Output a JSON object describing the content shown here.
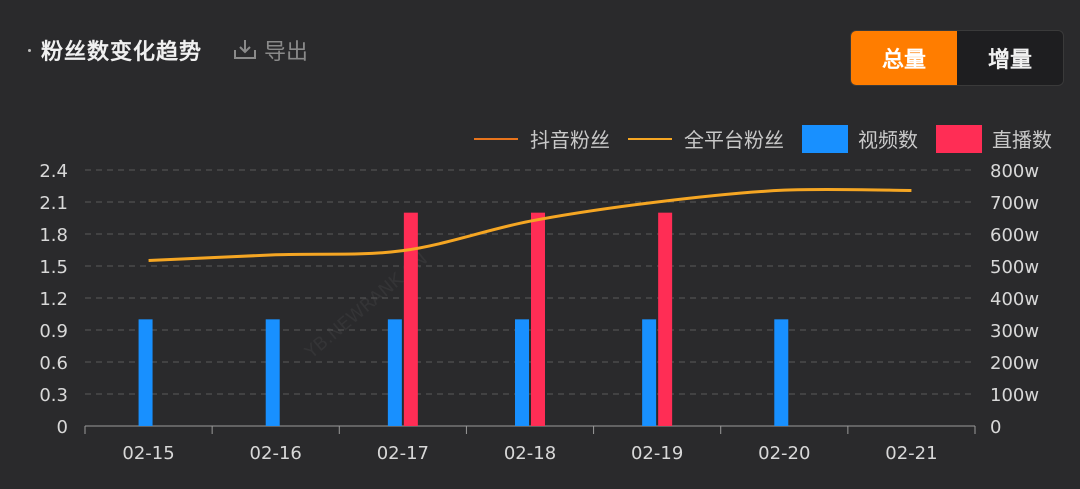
{
  "header": {
    "title": "粉丝数变化趋势",
    "export_label": "导出"
  },
  "toggle": {
    "total_label": "总量",
    "increment_label": "增量",
    "active": "total"
  },
  "colors": {
    "background": "#2a2a2c",
    "accent": "#ff7d00",
    "douyin_line": "#e8741c",
    "all_platform_line": "#f5a623",
    "video_bar": "#1890ff",
    "live_bar": "#ff2d55",
    "grid": "#5a5a5a"
  },
  "watermark": "YB.NEWRANK.CN",
  "chart_data": {
    "type": "bar",
    "categories": [
      "02-15",
      "02-16",
      "02-17",
      "02-18",
      "02-19",
      "02-20",
      "02-21"
    ],
    "left_axis": {
      "ticks": [
        "0",
        "0.3",
        "0.6",
        "0.9",
        "1.2",
        "1.5",
        "1.8",
        "2.1",
        "2.4"
      ],
      "ylim": [
        0,
        2.4
      ]
    },
    "right_axis": {
      "ticks": [
        "0",
        "100w",
        "200w",
        "300w",
        "400w",
        "500w",
        "600w",
        "700w",
        "800w"
      ],
      "ylim": [
        0,
        800
      ]
    },
    "grid": true,
    "legend_position": "top-right",
    "series": [
      {
        "name": "抖音粉丝",
        "kind": "line",
        "axis": "right",
        "values": [
          null,
          null,
          null,
          null,
          null,
          null,
          null
        ]
      },
      {
        "name": "全平台粉丝",
        "kind": "line",
        "axis": "right",
        "values": [
          517,
          535,
          548,
          640,
          700,
          737,
          736
        ]
      },
      {
        "name": "视频数",
        "kind": "bar",
        "axis": "left",
        "values": [
          1,
          1,
          1,
          1,
          1,
          1,
          0
        ]
      },
      {
        "name": "直播数",
        "kind": "bar",
        "axis": "left",
        "values": [
          0,
          0,
          2,
          2,
          2,
          0,
          0
        ]
      }
    ]
  }
}
